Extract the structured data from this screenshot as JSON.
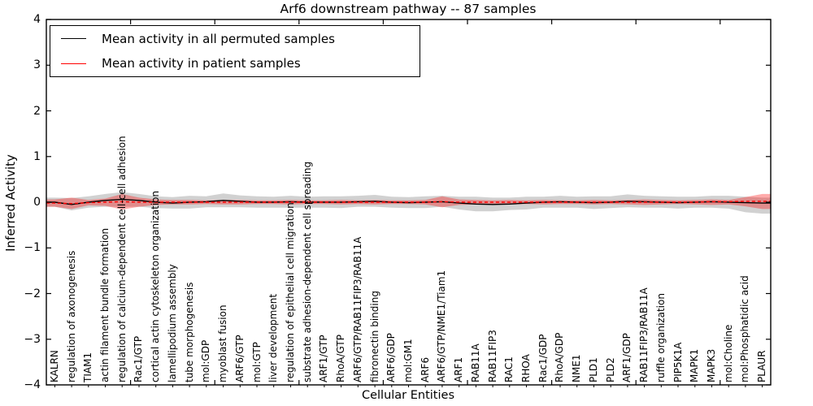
{
  "figure": {
    "title": "Arf6 downstream pathway -- 87 samples"
  },
  "chart_data": {
    "type": "line",
    "title": "Arf6 downstream pathway -- 87 samples",
    "xlabel": "Cellular Entities",
    "ylabel": "Inferred Activity",
    "sample_count": 87,
    "ylim": [
      -4,
      4
    ],
    "ytick_values": [
      4,
      3,
      2,
      1,
      0,
      -1,
      -2,
      -3,
      -4
    ],
    "ytick_labels": [
      "4",
      "3",
      "2",
      "1",
      "0",
      "−1",
      "−2",
      "−3",
      "−4"
    ],
    "x_major_tick_step": 5,
    "grid": false,
    "legend_position": "upper left",
    "categories": [
      "KALRN",
      "regulation of axonogenesis",
      "TIAM1",
      "actin filament bundle formation",
      "regulation of calcium-dependent cell-cell adhesion",
      "Rac1/GTP",
      "cortical actin cytoskeleton organization",
      "lamellipodium assembly",
      "tube morphogenesis",
      "mol:GDP",
      "myoblast fusion",
      "ARF6/GTP",
      "mol:GTP",
      "liver development",
      "regulation of epithelial cell migration",
      "substrate adhesion-dependent cell spreading",
      "ARF1/GTP",
      "RhoA/GTP",
      "ARF6/GTP/RAB11FIP3/RAB11A",
      "fibronectin binding",
      "ARF6/GDP",
      "mol:GM1",
      "ARF6",
      "ARF6/GTP/NME1/Tiam1",
      "ARF1",
      "RAB11A",
      "RAB11FIP3",
      "RAC1",
      "RHOA",
      "Rac1/GDP",
      "RhoA/GDP",
      "NME1",
      "PLD1",
      "PLD2",
      "ARF1/GDP",
      "RAB11FIP3/RAB11A",
      "ruffle organization",
      "PIP5K1A",
      "MAPK1",
      "MAPK3",
      "mol:Choline",
      "mol:Phosphatidic acid",
      "PLAUR"
    ],
    "series": [
      {
        "name": "Mean activity in all permuted samples",
        "line_color": "#000000",
        "line_style": "solid",
        "band_color": "rgba(0,0,0,0.18)",
        "mean": [
          0.0,
          -0.05,
          0.0,
          0.04,
          0.06,
          0.04,
          0.0,
          -0.02,
          0.0,
          0.01,
          0.04,
          0.02,
          0.0,
          0.0,
          0.01,
          0.0,
          0.0,
          0.0,
          0.01,
          0.02,
          0.0,
          -0.01,
          0.0,
          0.01,
          -0.02,
          -0.04,
          -0.05,
          -0.04,
          -0.02,
          0.0,
          0.01,
          0.0,
          -0.01,
          0.0,
          0.02,
          0.01,
          0.0,
          -0.01,
          0.0,
          0.01,
          0.0,
          -0.01,
          -0.02
        ],
        "upper": [
          0.1,
          0.09,
          0.13,
          0.18,
          0.22,
          0.18,
          0.13,
          0.11,
          0.14,
          0.13,
          0.19,
          0.15,
          0.13,
          0.12,
          0.14,
          0.12,
          0.13,
          0.13,
          0.14,
          0.16,
          0.12,
          0.11,
          0.13,
          0.14,
          0.12,
          0.12,
          0.1,
          0.1,
          0.12,
          0.12,
          0.14,
          0.12,
          0.13,
          0.13,
          0.17,
          0.14,
          0.13,
          0.12,
          0.12,
          0.14,
          0.14,
          0.12,
          0.1
        ],
        "lower": [
          -0.1,
          -0.18,
          -0.12,
          -0.1,
          -0.1,
          -0.1,
          -0.13,
          -0.14,
          -0.14,
          -0.11,
          -0.11,
          -0.11,
          -0.12,
          -0.12,
          -0.12,
          -0.12,
          -0.12,
          -0.13,
          -0.1,
          -0.1,
          -0.12,
          -0.13,
          -0.13,
          -0.1,
          -0.16,
          -0.2,
          -0.2,
          -0.17,
          -0.16,
          -0.12,
          -0.12,
          -0.12,
          -0.15,
          -0.13,
          -0.11,
          -0.12,
          -0.12,
          -0.14,
          -0.12,
          -0.12,
          -0.14,
          -0.22,
          -0.25
        ]
      },
      {
        "name": "Mean activity in patient samples",
        "line_color": "#ff0000",
        "line_style": "dashed",
        "band_color": "rgba(255,0,0,0.33)",
        "mean": [
          -0.02,
          -0.03,
          -0.01,
          0.0,
          0.01,
          0.0,
          0.0,
          0.0,
          0.0,
          0.0,
          0.0,
          0.0,
          0.0,
          0.0,
          0.0,
          0.0,
          0.0,
          0.0,
          0.0,
          0.0,
          0.0,
          0.0,
          0.0,
          0.01,
          0.0,
          0.0,
          0.0,
          0.0,
          0.0,
          0.0,
          0.0,
          0.0,
          0.0,
          0.0,
          0.0,
          0.0,
          0.0,
          0.0,
          0.0,
          0.01,
          0.01,
          0.02,
          0.02
        ],
        "upper": [
          0.06,
          0.1,
          0.05,
          0.08,
          0.18,
          0.1,
          0.06,
          0.05,
          0.05,
          0.04,
          0.05,
          0.05,
          0.04,
          0.04,
          0.05,
          0.04,
          0.04,
          0.05,
          0.04,
          0.05,
          0.04,
          0.04,
          0.05,
          0.13,
          0.06,
          0.05,
          0.04,
          0.05,
          0.04,
          0.05,
          0.04,
          0.04,
          0.05,
          0.04,
          0.05,
          0.06,
          0.05,
          0.04,
          0.05,
          0.06,
          0.05,
          0.11,
          0.18
        ],
        "lower": [
          -0.1,
          -0.15,
          -0.07,
          -0.08,
          -0.16,
          -0.1,
          -0.06,
          -0.05,
          -0.05,
          -0.04,
          -0.05,
          -0.05,
          -0.04,
          -0.04,
          -0.05,
          -0.04,
          -0.04,
          -0.05,
          -0.04,
          -0.05,
          -0.04,
          -0.04,
          -0.05,
          -0.11,
          -0.06,
          -0.05,
          -0.04,
          -0.05,
          -0.04,
          -0.05,
          -0.04,
          -0.04,
          -0.05,
          -0.04,
          -0.05,
          -0.06,
          -0.05,
          -0.04,
          -0.05,
          -0.06,
          -0.05,
          -0.09,
          -0.15
        ]
      }
    ]
  }
}
